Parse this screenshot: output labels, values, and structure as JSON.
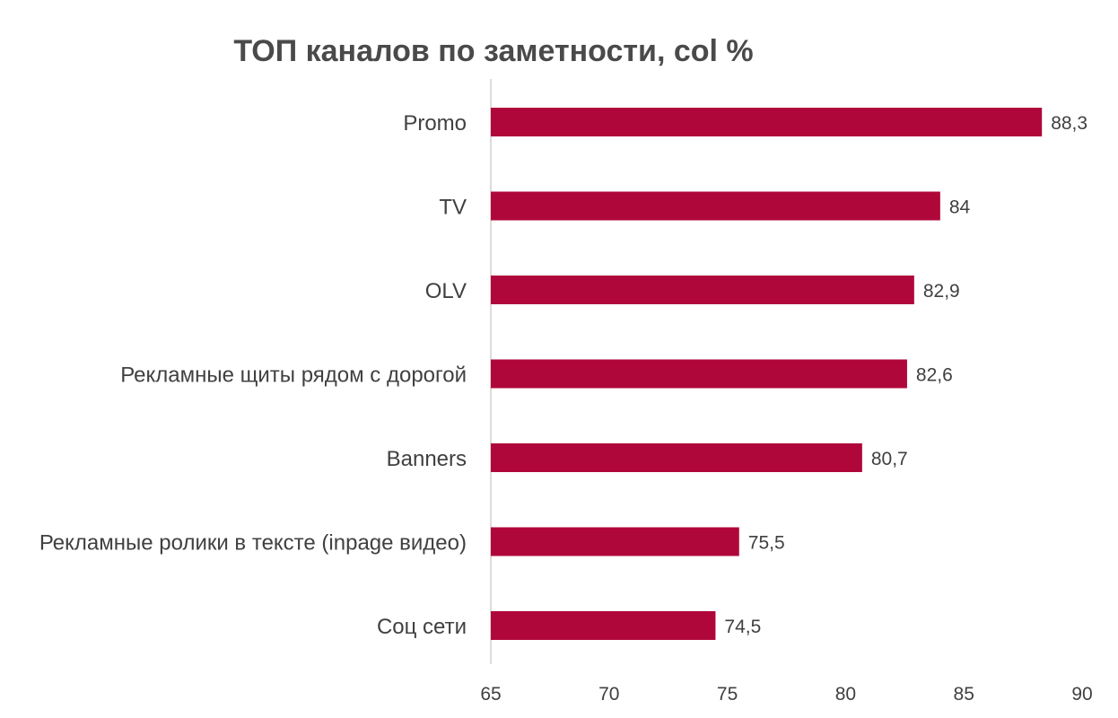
{
  "chart_data": {
    "type": "bar",
    "orientation": "horizontal",
    "title": "ТОП каналов по заметности, col %",
    "xlabel": "",
    "ylabel": "",
    "categories": [
      "Promo",
      "TV",
      "OLV",
      "Рекламные щиты рядом с дорогой",
      "Banners",
      "Рекламные ролики в тексте (inpage видео)",
      "Соц сети"
    ],
    "values": [
      88.3,
      84,
      82.9,
      82.6,
      80.7,
      75.5,
      74.5
    ],
    "value_labels": [
      "88,3",
      "84",
      "82,9",
      "82,6",
      "80,7",
      "75,5",
      "74,5"
    ],
    "xlim": [
      65,
      90
    ],
    "x_ticks": [
      65,
      70,
      75,
      80,
      85,
      90
    ],
    "x_tick_labels": [
      "65",
      "70",
      "75",
      "80",
      "85",
      "90"
    ],
    "bar_color": "#B0073A",
    "axis_color": "#D0D0D0",
    "text_color": "#404040",
    "grid": false,
    "legend": "none"
  }
}
